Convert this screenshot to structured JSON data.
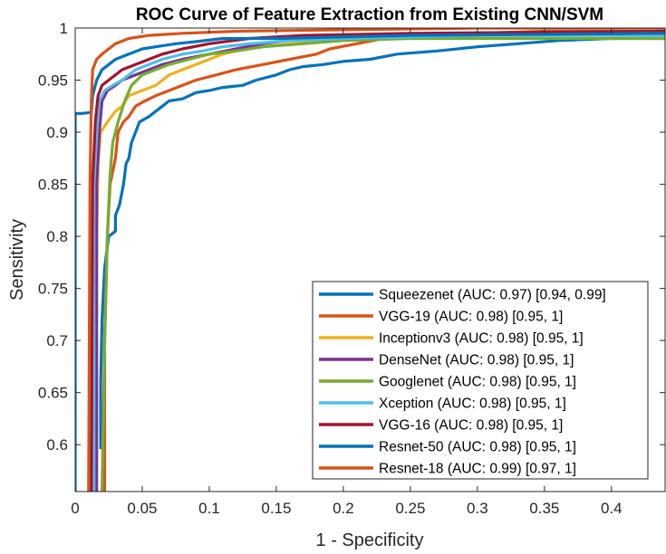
{
  "chart_data": {
    "type": "line",
    "title": "ROC Curve of Feature Extraction from Existing CNN/SVM",
    "xlabel": "1 - Specificity",
    "ylabel": "Sensitivity",
    "xlim": [
      0,
      0.44
    ],
    "ylim": [
      0.555,
      1.0
    ],
    "xticks": [
      "0",
      "0.05",
      "0.1",
      "0.15",
      "0.2",
      "0.25",
      "0.3",
      "0.35",
      "0.4"
    ],
    "yticks": [
      "0.6",
      "0.65",
      "0.7",
      "0.75",
      "0.8",
      "0.85",
      "0.9",
      "0.95",
      "1"
    ],
    "grid": false,
    "legend_position": "bottom-right",
    "series": [
      {
        "name": "Squeezenet (AUC: 0.97) [0.94, 0.99]",
        "color": "#0072BD",
        "points": [
          [
            0.019,
            0.597
          ],
          [
            0.019,
            0.66
          ],
          [
            0.02,
            0.72
          ],
          [
            0.022,
            0.77
          ],
          [
            0.025,
            0.8
          ],
          [
            0.03,
            0.805
          ],
          [
            0.03,
            0.82
          ],
          [
            0.033,
            0.83
          ],
          [
            0.036,
            0.85
          ],
          [
            0.038,
            0.87
          ],
          [
            0.04,
            0.875
          ],
          [
            0.042,
            0.89
          ],
          [
            0.045,
            0.9
          ],
          [
            0.048,
            0.91
          ],
          [
            0.055,
            0.915
          ],
          [
            0.06,
            0.92
          ],
          [
            0.065,
            0.925
          ],
          [
            0.07,
            0.93
          ],
          [
            0.08,
            0.932
          ],
          [
            0.085,
            0.935
          ],
          [
            0.09,
            0.938
          ],
          [
            0.1,
            0.94
          ],
          [
            0.11,
            0.943
          ],
          [
            0.125,
            0.945
          ],
          [
            0.135,
            0.95
          ],
          [
            0.15,
            0.955
          ],
          [
            0.16,
            0.96
          ],
          [
            0.17,
            0.963
          ],
          [
            0.185,
            0.965
          ],
          [
            0.2,
            0.968
          ],
          [
            0.22,
            0.97
          ],
          [
            0.24,
            0.975
          ],
          [
            0.27,
            0.978
          ],
          [
            0.3,
            0.982
          ],
          [
            0.33,
            0.985
          ],
          [
            0.36,
            0.988
          ],
          [
            0.4,
            0.99
          ],
          [
            0.44,
            0.99
          ]
        ]
      },
      {
        "name": "VGG-19 (AUC: 0.98) [0.95, 1]",
        "color": "#D95319",
        "points": [
          [
            0.022,
            0.555
          ],
          [
            0.022,
            0.7
          ],
          [
            0.024,
            0.8
          ],
          [
            0.026,
            0.85
          ],
          [
            0.03,
            0.875
          ],
          [
            0.032,
            0.9
          ],
          [
            0.036,
            0.91
          ],
          [
            0.04,
            0.915
          ],
          [
            0.045,
            0.925
          ],
          [
            0.052,
            0.93
          ],
          [
            0.06,
            0.935
          ],
          [
            0.07,
            0.94
          ],
          [
            0.08,
            0.945
          ],
          [
            0.09,
            0.95
          ],
          [
            0.105,
            0.955
          ],
          [
            0.12,
            0.96
          ],
          [
            0.14,
            0.965
          ],
          [
            0.16,
            0.97
          ],
          [
            0.18,
            0.975
          ],
          [
            0.19,
            0.98
          ],
          [
            0.21,
            0.985
          ],
          [
            0.23,
            0.99
          ],
          [
            0.26,
            0.993
          ],
          [
            0.3,
            0.995
          ],
          [
            0.35,
            0.997
          ],
          [
            0.44,
            0.997
          ]
        ]
      },
      {
        "name": "Inceptionv3 (AUC: 0.98) [0.95, 1]",
        "color": "#EDB120",
        "points": [
          [
            0.015,
            0.555
          ],
          [
            0.016,
            0.8
          ],
          [
            0.017,
            0.87
          ],
          [
            0.019,
            0.9
          ],
          [
            0.024,
            0.91
          ],
          [
            0.03,
            0.92
          ],
          [
            0.035,
            0.925
          ],
          [
            0.04,
            0.935
          ],
          [
            0.05,
            0.94
          ],
          [
            0.06,
            0.945
          ],
          [
            0.07,
            0.955
          ],
          [
            0.08,
            0.96
          ],
          [
            0.09,
            0.965
          ],
          [
            0.1,
            0.97
          ],
          [
            0.11,
            0.975
          ],
          [
            0.12,
            0.978
          ],
          [
            0.14,
            0.982
          ],
          [
            0.16,
            0.985
          ],
          [
            0.19,
            0.988
          ],
          [
            0.23,
            0.99
          ],
          [
            0.3,
            0.993
          ],
          [
            0.44,
            0.995
          ]
        ]
      },
      {
        "name": "DenseNet (AUC: 0.98) [0.95, 1]",
        "color": "#7E2F8E",
        "points": [
          [
            0.016,
            0.555
          ],
          [
            0.016,
            0.85
          ],
          [
            0.018,
            0.9
          ],
          [
            0.02,
            0.93
          ],
          [
            0.024,
            0.94
          ],
          [
            0.03,
            0.945
          ],
          [
            0.035,
            0.95
          ],
          [
            0.045,
            0.955
          ],
          [
            0.055,
            0.96
          ],
          [
            0.065,
            0.965
          ],
          [
            0.08,
            0.97
          ],
          [
            0.1,
            0.975
          ],
          [
            0.12,
            0.98
          ],
          [
            0.14,
            0.985
          ],
          [
            0.17,
            0.99
          ],
          [
            0.22,
            0.993
          ],
          [
            0.3,
            0.995
          ],
          [
            0.44,
            0.997
          ]
        ]
      },
      {
        "name": "Googlenet (AUC: 0.98) [0.95, 1]",
        "color": "#77AC30",
        "points": [
          [
            0.02,
            0.555
          ],
          [
            0.022,
            0.7
          ],
          [
            0.024,
            0.8
          ],
          [
            0.026,
            0.86
          ],
          [
            0.028,
            0.89
          ],
          [
            0.032,
            0.91
          ],
          [
            0.037,
            0.93
          ],
          [
            0.042,
            0.945
          ],
          [
            0.05,
            0.955
          ],
          [
            0.06,
            0.96
          ],
          [
            0.07,
            0.965
          ],
          [
            0.085,
            0.97
          ],
          [
            0.1,
            0.975
          ],
          [
            0.12,
            0.978
          ],
          [
            0.14,
            0.982
          ],
          [
            0.17,
            0.985
          ],
          [
            0.2,
            0.988
          ],
          [
            0.25,
            0.99
          ],
          [
            0.3,
            0.99
          ],
          [
            0.44,
            0.99
          ]
        ]
      },
      {
        "name": "Xception (AUC: 0.98) [0.95, 1]",
        "color": "#4DBEEE",
        "points": [
          [
            0.014,
            0.555
          ],
          [
            0.014,
            0.85
          ],
          [
            0.016,
            0.9
          ],
          [
            0.018,
            0.93
          ],
          [
            0.022,
            0.94
          ],
          [
            0.028,
            0.945
          ],
          [
            0.035,
            0.95
          ],
          [
            0.045,
            0.96
          ],
          [
            0.055,
            0.965
          ],
          [
            0.065,
            0.97
          ],
          [
            0.08,
            0.975
          ],
          [
            0.095,
            0.978
          ],
          [
            0.11,
            0.982
          ],
          [
            0.13,
            0.985
          ],
          [
            0.16,
            0.988
          ],
          [
            0.2,
            0.99
          ],
          [
            0.3,
            0.993
          ],
          [
            0.44,
            0.993
          ]
        ]
      },
      {
        "name": "VGG-16 (AUC: 0.98) [0.95, 1]",
        "color": "#A2142F",
        "points": [
          [
            0.012,
            0.555
          ],
          [
            0.013,
            0.85
          ],
          [
            0.015,
            0.91
          ],
          [
            0.017,
            0.935
          ],
          [
            0.02,
            0.945
          ],
          [
            0.025,
            0.95
          ],
          [
            0.03,
            0.955
          ],
          [
            0.035,
            0.96
          ],
          [
            0.045,
            0.965
          ],
          [
            0.055,
            0.97
          ],
          [
            0.065,
            0.975
          ],
          [
            0.08,
            0.98
          ],
          [
            0.1,
            0.985
          ],
          [
            0.13,
            0.99
          ],
          [
            0.17,
            0.993
          ],
          [
            0.25,
            0.995
          ],
          [
            0.44,
            0.997
          ]
        ]
      },
      {
        "name": "Resnet-50 (AUC: 0.98) [0.95, 1]",
        "color": "#0072BD",
        "points": [
          [
            0.0,
            0.555
          ],
          [
            0.0,
            0.918
          ],
          [
            0.005,
            0.918
          ],
          [
            0.012,
            0.919
          ],
          [
            0.013,
            0.935
          ],
          [
            0.016,
            0.95
          ],
          [
            0.02,
            0.96
          ],
          [
            0.025,
            0.965
          ],
          [
            0.03,
            0.97
          ],
          [
            0.04,
            0.975
          ],
          [
            0.05,
            0.98
          ],
          [
            0.06,
            0.982
          ],
          [
            0.075,
            0.985
          ],
          [
            0.09,
            0.987
          ],
          [
            0.11,
            0.99
          ],
          [
            0.15,
            0.99
          ],
          [
            0.25,
            0.993
          ],
          [
            0.44,
            0.995
          ]
        ]
      },
      {
        "name": "Resnet-18 (AUC: 0.99) [0.97, 1]",
        "color": "#D95319",
        "points": [
          [
            0.01,
            0.555
          ],
          [
            0.011,
            0.85
          ],
          [
            0.012,
            0.93
          ],
          [
            0.013,
            0.96
          ],
          [
            0.016,
            0.97
          ],
          [
            0.02,
            0.975
          ],
          [
            0.025,
            0.98
          ],
          [
            0.03,
            0.985
          ],
          [
            0.04,
            0.99
          ],
          [
            0.055,
            0.993
          ],
          [
            0.08,
            0.995
          ],
          [
            0.12,
            0.997
          ],
          [
            0.18,
            0.998
          ],
          [
            0.3,
            1.0
          ],
          [
            0.44,
            1.0
          ]
        ]
      }
    ]
  }
}
